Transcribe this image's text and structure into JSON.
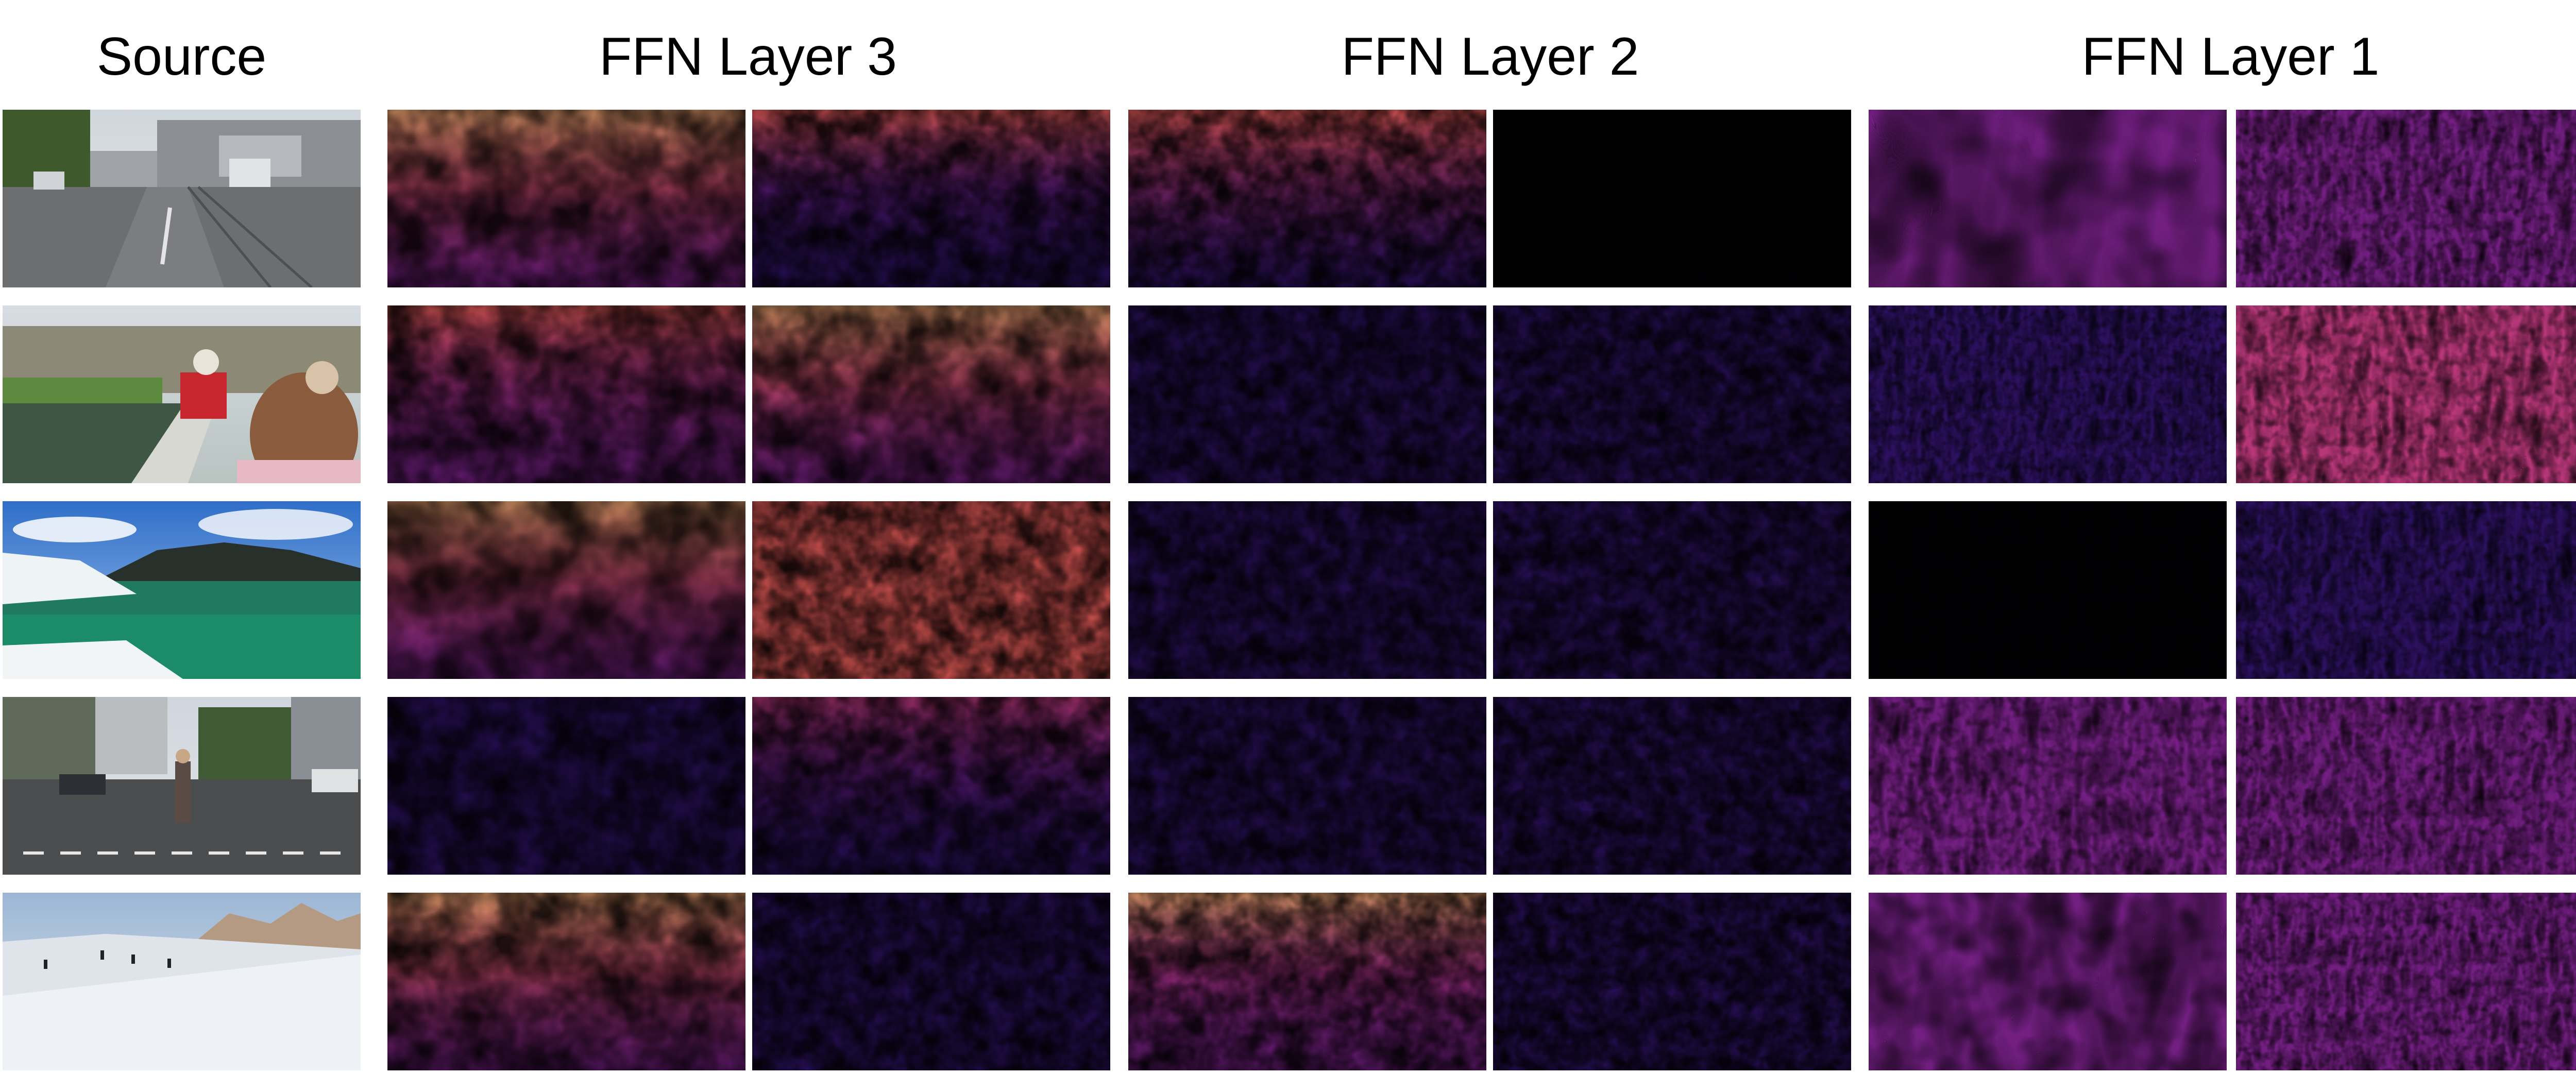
{
  "headers": {
    "source": "Source",
    "ffn3": "FFN Layer 3",
    "ffn2": "FFN Layer 2",
    "ffn1": "FFN Layer 1"
  },
  "colors": {
    "colormap": [
      "#000004",
      "#2c115f",
      "#721f81",
      "#b73779",
      "#f1605d",
      "#feb078",
      "#fcfdbf"
    ],
    "background": "#ffffff"
  },
  "rows": [
    {
      "scene": "city street with tram tracks",
      "ffn3": [
        {
          "level": 0.5,
          "freq": 0.012,
          "bright_top": true
        },
        {
          "level": 0.28,
          "freq": 0.018,
          "bright_top": true
        }
      ],
      "ffn2": [
        {
          "level": 0.38,
          "freq": 0.02,
          "bright_top": true
        },
        {
          "level": 0.15,
          "freq": 0.03,
          "bright_top": false
        }
      ],
      "ffn1": [
        {
          "level": 0.55,
          "freq": 0.006,
          "bright_top": false
        },
        {
          "level": 0.42,
          "freq": 0.035,
          "bright_top": false
        }
      ]
    },
    {
      "scene": "riverboat passengers",
      "ffn3": [
        {
          "level": 0.4,
          "freq": 0.014,
          "bright_top": true
        },
        {
          "level": 0.55,
          "freq": 0.014,
          "bright_top": true
        }
      ],
      "ffn2": [
        {
          "level": 0.3,
          "freq": 0.022,
          "bright_top": false
        },
        {
          "level": 0.32,
          "freq": 0.026,
          "bright_top": false
        }
      ],
      "ffn1": [
        {
          "level": 0.3,
          "freq": 0.04,
          "bright_top": false
        },
        {
          "level": 0.58,
          "freq": 0.03,
          "bright_top": false
        }
      ]
    },
    {
      "scene": "lake with mountains and snow bank",
      "ffn3": [
        {
          "level": 0.55,
          "freq": 0.01,
          "bright_top": true
        },
        {
          "level": 0.92,
          "freq": 0.02,
          "bright_top": false
        }
      ],
      "ffn2": [
        {
          "level": 0.35,
          "freq": 0.022,
          "bright_top": false
        },
        {
          "level": 0.38,
          "freq": 0.024,
          "bright_top": false
        }
      ],
      "ffn1": [
        {
          "level": 0.18,
          "freq": 0.045,
          "bright_top": false
        },
        {
          "level": 0.33,
          "freq": 0.035,
          "bright_top": false
        }
      ]
    },
    {
      "scene": "pedestrian crossing at intersection",
      "ffn3": [
        {
          "level": 0.35,
          "freq": 0.016,
          "bright_top": false
        },
        {
          "level": 0.22,
          "freq": 0.018,
          "bright_top": true
        }
      ],
      "ffn2": [
        {
          "level": 0.35,
          "freq": 0.022,
          "bright_top": false
        },
        {
          "level": 0.3,
          "freq": 0.026,
          "bright_top": false
        }
      ],
      "ffn1": [
        {
          "level": 0.5,
          "freq": 0.03,
          "bright_top": false
        },
        {
          "level": 0.52,
          "freq": 0.035,
          "bright_top": false
        }
      ]
    },
    {
      "scene": "ski slope with skiers",
      "ffn3": [
        {
          "level": 0.5,
          "freq": 0.014,
          "bright_top": true
        },
        {
          "level": 0.3,
          "freq": 0.022,
          "bright_top": false
        }
      ],
      "ffn2": [
        {
          "level": 0.42,
          "freq": 0.02,
          "bright_top": true
        },
        {
          "level": 0.25,
          "freq": 0.028,
          "bright_top": false
        }
      ],
      "ffn1": [
        {
          "level": 0.55,
          "freq": 0.01,
          "bright_top": false
        },
        {
          "level": 0.45,
          "freq": 0.038,
          "bright_top": false
        }
      ]
    }
  ]
}
